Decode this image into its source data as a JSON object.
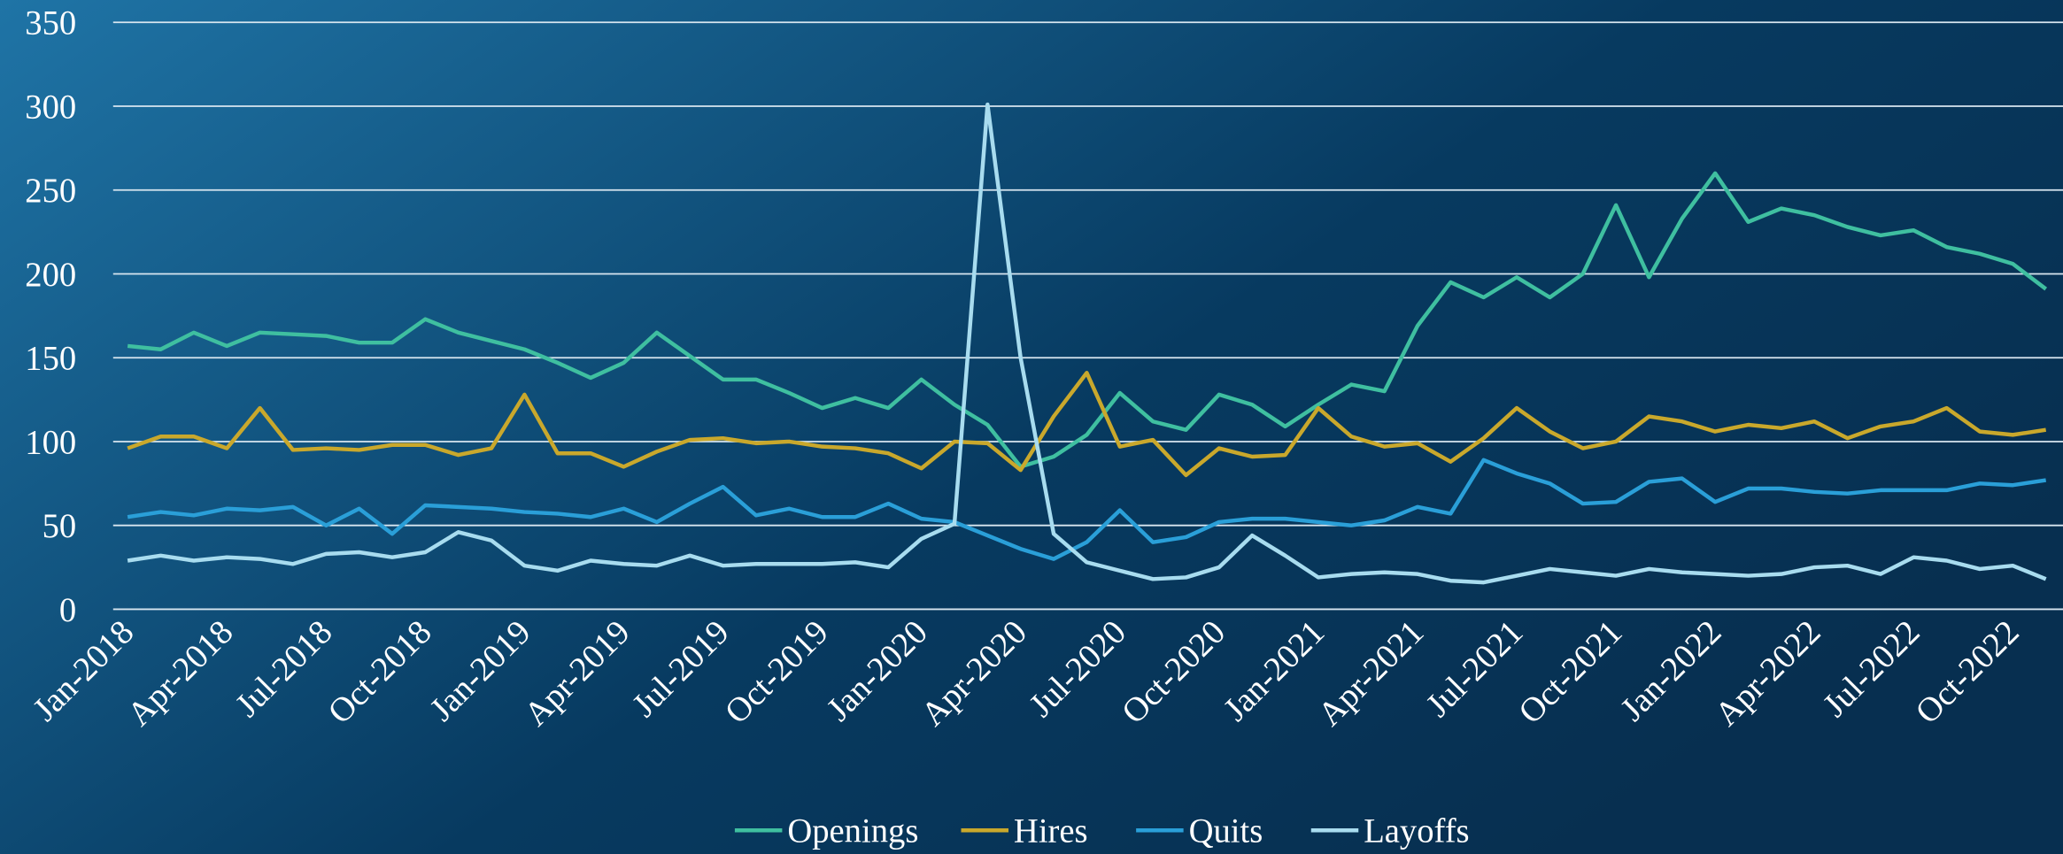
{
  "chart_data": {
    "type": "line",
    "categories": [
      "Jan-2018",
      null,
      null,
      "Apr-2018",
      null,
      null,
      "Jul-2018",
      null,
      null,
      "Oct-2018",
      null,
      null,
      "Jan-2019",
      null,
      null,
      "Apr-2019",
      null,
      null,
      "Jul-2019",
      null,
      null,
      "Oct-2019",
      null,
      null,
      "Jan-2020",
      null,
      null,
      "Apr-2020",
      null,
      null,
      "Jul-2020",
      null,
      null,
      "Oct-2020",
      null,
      null,
      "Jan-2021",
      null,
      null,
      "Apr-2021",
      null,
      null,
      "Jul-2021",
      null,
      null,
      "Oct-2021",
      null,
      null,
      "Jan-2022",
      null,
      null,
      "Apr-2022",
      null,
      null,
      "Jul-2022",
      null,
      null,
      "Oct-2022",
      null
    ],
    "series": [
      {
        "name": "Openings",
        "color": "#3fbfa0",
        "values": [
          157,
          155,
          165,
          157,
          165,
          164,
          163,
          159,
          159,
          173,
          165,
          160,
          155,
          147,
          138,
          147,
          165,
          151,
          137,
          137,
          129,
          120,
          126,
          120,
          137,
          122,
          110,
          85,
          91,
          104,
          129,
          112,
          107,
          128,
          122,
          109,
          122,
          134,
          130,
          169,
          195,
          186,
          198,
          186,
          200,
          241,
          198,
          233,
          260,
          231,
          239,
          235,
          228,
          223,
          226,
          216,
          212,
          206,
          191
        ]
      },
      {
        "name": "Hires",
        "color": "#c9a82c",
        "values": [
          96,
          103,
          103,
          96,
          120,
          95,
          96,
          95,
          98,
          98,
          92,
          96,
          128,
          93,
          93,
          85,
          94,
          101,
          102,
          99,
          100,
          97,
          96,
          93,
          84,
          100,
          99,
          83,
          115,
          141,
          97,
          101,
          80,
          96,
          91,
          92,
          120,
          103,
          97,
          99,
          88,
          102,
          120,
          106,
          96,
          100,
          115,
          112,
          106,
          110,
          108,
          112,
          102,
          109,
          112,
          120,
          106,
          104,
          107
        ]
      },
      {
        "name": "Quits",
        "color": "#2a9fd8",
        "values": [
          55,
          58,
          56,
          60,
          59,
          61,
          50,
          60,
          45,
          62,
          61,
          60,
          58,
          57,
          55,
          60,
          52,
          63,
          73,
          56,
          60,
          55,
          55,
          63,
          54,
          52,
          44,
          36,
          30,
          40,
          59,
          40,
          43,
          52,
          54,
          54,
          52,
          50,
          53,
          61,
          57,
          89,
          81,
          75,
          63,
          64,
          76,
          78,
          64,
          72,
          72,
          70,
          69,
          71,
          71,
          71,
          75,
          74,
          77
        ]
      },
      {
        "name": "Layoffs",
        "color": "#a8dcef",
        "values": [
          29,
          32,
          29,
          31,
          30,
          27,
          33,
          34,
          31,
          34,
          46,
          41,
          26,
          23,
          29,
          27,
          26,
          32,
          26,
          27,
          27,
          27,
          28,
          25,
          42,
          51,
          301,
          150,
          45,
          28,
          23,
          18,
          19,
          25,
          44,
          32,
          19,
          21,
          22,
          21,
          17,
          16,
          20,
          24,
          22,
          20,
          24,
          22,
          21,
          20,
          21,
          25,
          26,
          21,
          31,
          29,
          24,
          26,
          18
        ]
      }
    ],
    "ylim": [
      0,
      350
    ],
    "yticks": [
      0,
      50,
      100,
      150,
      200,
      250,
      300,
      350
    ],
    "grid": true,
    "legend": "bottom"
  }
}
